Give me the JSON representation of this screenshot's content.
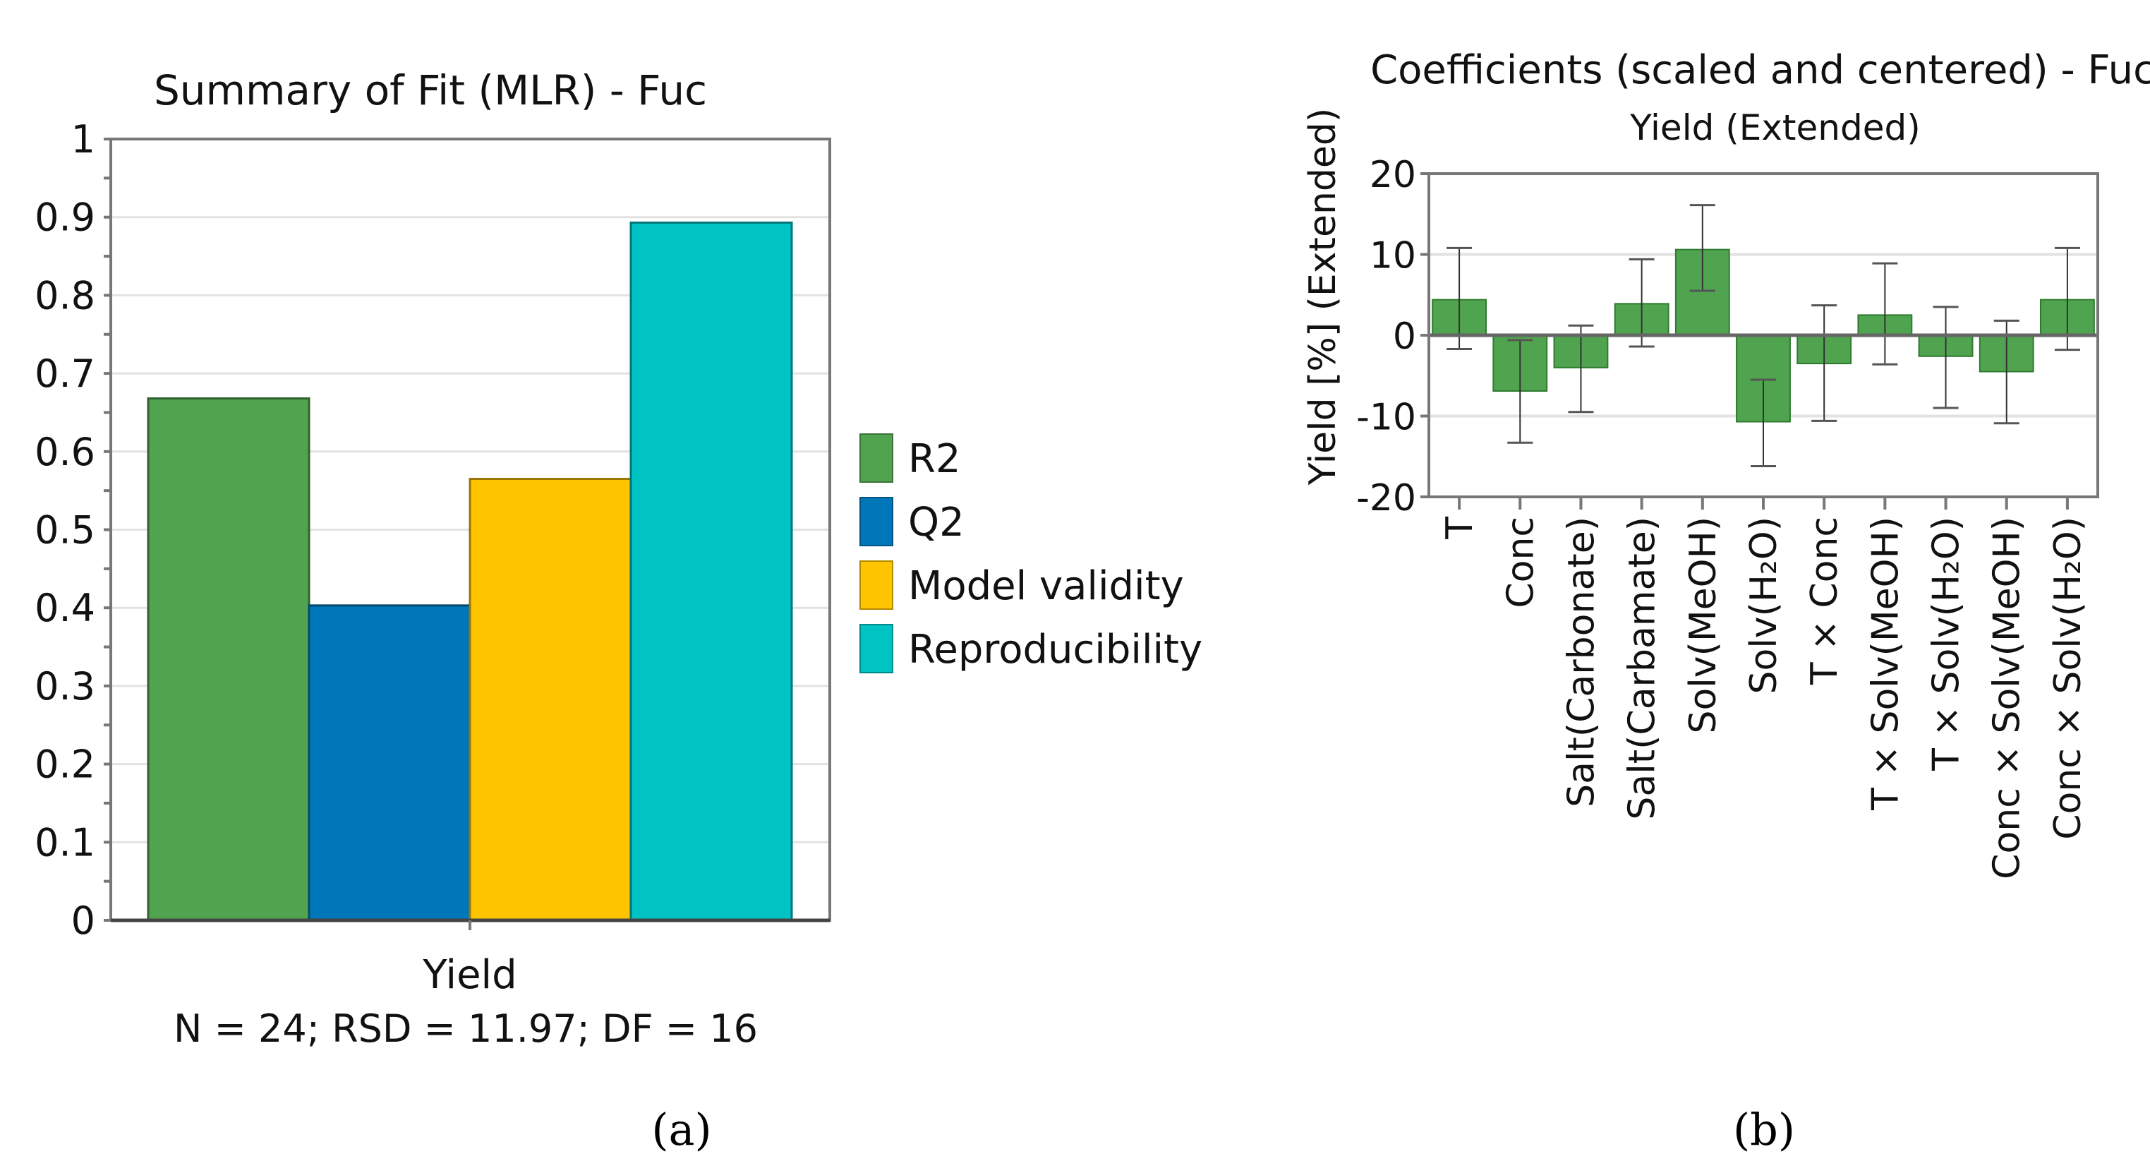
{
  "chart_data": [
    {
      "type": "bar",
      "title": "Summary of Fit (MLR) - Fuc",
      "categories": [
        "Yield"
      ],
      "xlabel": "Yield",
      "footnote": "N = 24; RSD = 11.97; DF = 16",
      "ylim": [
        0,
        1
      ],
      "yticks": [
        "0",
        "0.1",
        "0.2",
        "0.3",
        "0.4",
        "0.5",
        "0.6",
        "0.7",
        "0.8",
        "0.9",
        "1"
      ],
      "grid": true,
      "legend_position": "right",
      "series": [
        {
          "name": "R2",
          "values": [
            0.668
          ],
          "color": "#51a44f"
        },
        {
          "name": "Q2",
          "values": [
            0.403
          ],
          "color": "#0077b9"
        },
        {
          "name": "Model validity",
          "values": [
            0.565
          ],
          "color": "#ffc400"
        },
        {
          "name": "Reproducibility",
          "values": [
            0.893
          ],
          "color": "#00c4c4"
        }
      ],
      "panel_label": "(a)"
    },
    {
      "type": "bar",
      "title": "Coefficients (scaled and centered) - Fuc",
      "subtitle": "Yield (Extended)",
      "ylabel": "Yield [%] (Extended)",
      "ylim": [
        -20,
        20
      ],
      "yticks": [
        "-20",
        "-10",
        "0",
        "10",
        "20"
      ],
      "grid": true,
      "color": "#51a44f",
      "categories": [
        "T",
        "Conc",
        "Salt(Carbonate)",
        "Salt(Carbamate)",
        "Solv(MeOH)",
        "Solv(H₂O)",
        "T × Conc",
        "T × Solv(MeOH)",
        "T × Solv(H₂O)",
        "Conc × Solv(MeOH)",
        "Conc × Solv(H₂O)"
      ],
      "values": [
        4.4,
        -6.9,
        -4.0,
        3.9,
        10.6,
        -10.7,
        -3.5,
        2.5,
        -2.6,
        -4.5,
        4.4
      ],
      "error_high": [
        10.8,
        -0.6,
        1.2,
        9.4,
        16.1,
        -5.5,
        3.7,
        8.9,
        3.5,
        1.8,
        10.8
      ],
      "error_low": [
        -1.7,
        -13.3,
        -9.5,
        -1.4,
        5.5,
        -16.2,
        -10.6,
        -3.6,
        -9.0,
        -10.9,
        -1.8
      ],
      "panel_label": "(b)"
    }
  ]
}
